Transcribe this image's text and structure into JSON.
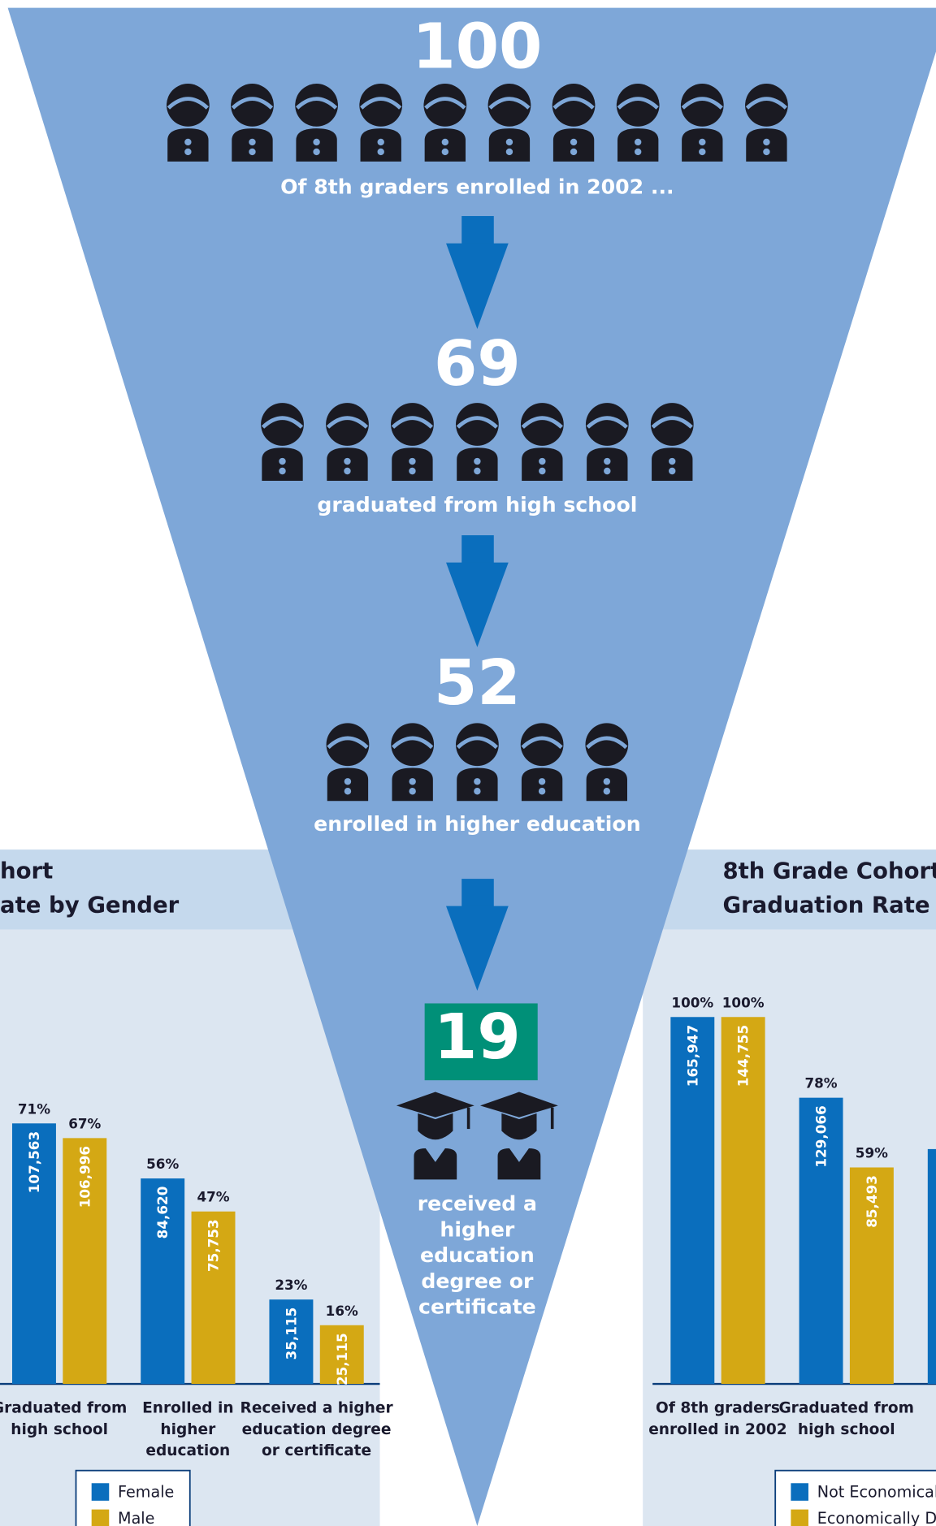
{
  "funnel": {
    "stages": [
      {
        "value": 100,
        "caption": [
          "Of 8th graders enrolled in 2002 ..."
        ]
      },
      {
        "value": 69,
        "caption": [
          "graduated from high school"
        ]
      },
      {
        "value": 52,
        "caption": [
          "enrolled in higher education"
        ]
      },
      {
        "value": 19,
        "caption": [
          "received a",
          "higher",
          "education",
          "degree or",
          "certificate"
        ]
      }
    ]
  },
  "chart_data": [
    {
      "type": "bar",
      "title": [
        "hort",
        "ate by Gender"
      ],
      "categories": [
        [
          "Graduated from",
          "high school"
        ],
        [
          "Enrolled in",
          "higher",
          "education"
        ],
        [
          "Received a higher",
          "education degree",
          "or certificate"
        ]
      ],
      "series": [
        {
          "name": "Female",
          "color": "#0a6ebd",
          "values": [
            71,
            56,
            23
          ],
          "value_labels": [
            "71%",
            "56%",
            "23%"
          ],
          "counts": [
            107563,
            84620,
            35115
          ],
          "count_labels": [
            "107,563",
            "84,620",
            "35,115"
          ]
        },
        {
          "name": "Male",
          "color": "#d4a814",
          "values": [
            67,
            47,
            16
          ],
          "value_labels": [
            "67%",
            "47%",
            "16%"
          ],
          "counts": [
            106996,
            75753,
            25115
          ],
          "count_labels": [
            "106,996",
            "75,753",
            "25,115"
          ]
        }
      ]
    },
    {
      "type": "bar",
      "title": [
        "8th Grade Cohort",
        "Graduation Rate by"
      ],
      "categories": [
        [
          "Of 8th graders",
          "enrolled in 2002"
        ],
        [
          "Graduated from",
          "high school"
        ],
        []
      ],
      "series": [
        {
          "name": "Not Economicall",
          "color": "#0a6ebd",
          "values": [
            100,
            78,
            64
          ],
          "value_labels": [
            "100%",
            "78%",
            null
          ],
          "counts": [
            165947,
            129066,
            null
          ],
          "count_labels": [
            "165,947",
            "129,066",
            null
          ]
        },
        {
          "name": "Economically Dis",
          "color": "#d4a814",
          "values": [
            100,
            59,
            null
          ],
          "value_labels": [
            "100%",
            "59%",
            null
          ],
          "counts": [
            144755,
            85493,
            null
          ],
          "count_labels": [
            "144,755",
            "85,493",
            null
          ]
        }
      ]
    }
  ]
}
